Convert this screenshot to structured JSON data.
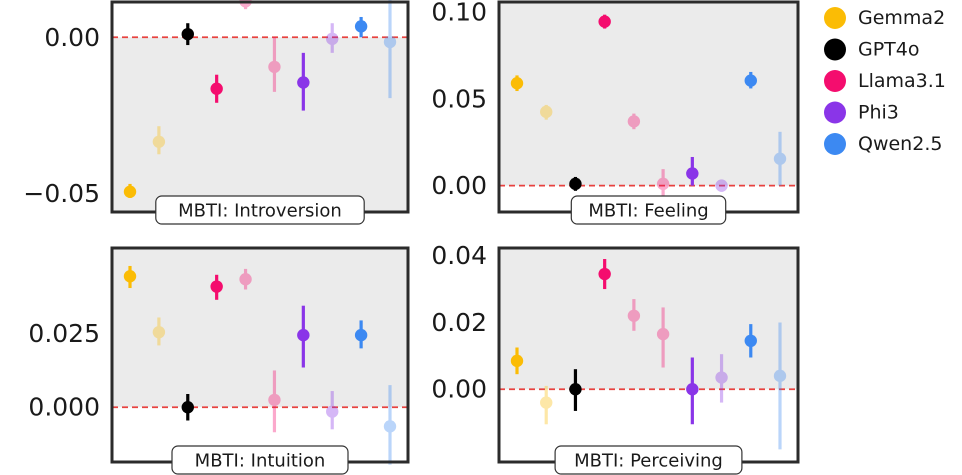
{
  "legend": {
    "placement": "right",
    "entries": [
      {
        "name": "Gemma2",
        "color": "#FBBC05"
      },
      {
        "name": "GPT4o",
        "color": "#000000"
      },
      {
        "name": "Llama3.1",
        "color": "#F40D6E"
      },
      {
        "name": "Phi3",
        "color": "#8A35E8"
      },
      {
        "name": "Qwen2.5",
        "color": "#3C89F2"
      }
    ]
  },
  "chart_data": [
    {
      "type": "scatter",
      "title": "MBTI: Introversion",
      "y_axis_side": "left",
      "ylim": [
        -0.056,
        0.0113
      ],
      "yticks": [
        {
          "v": 0.0,
          "label": "0.00"
        },
        {
          "v": -0.05,
          "label": "−0.05"
        }
      ],
      "xlim": [
        0,
        10
      ],
      "shade_above_zero": false,
      "points": [
        {
          "model": "Gemma2",
          "variant": "solid",
          "x": 1,
          "y": -0.0495,
          "lo": -0.0515,
          "hi": -0.047
        },
        {
          "model": "Gemma2",
          "variant": "faded",
          "x": 2,
          "y": -0.0335,
          "lo": -0.0375,
          "hi": -0.0285
        },
        {
          "model": "GPT4o",
          "variant": "solid",
          "x": 3,
          "y": 0.001,
          "lo": -0.0025,
          "hi": 0.0045
        },
        {
          "model": "Llama3.1",
          "variant": "solid",
          "x": 4,
          "y": -0.0165,
          "lo": -0.021,
          "hi": -0.012
        },
        {
          "model": "Llama3.1",
          "variant": "faded",
          "x": 5,
          "y": 0.0115,
          "lo": 0.009,
          "hi": 0.0135
        },
        {
          "model": "Llama3.1",
          "variant": "faded",
          "x": 6,
          "y": -0.0095,
          "lo": -0.0175,
          "hi": 0.0
        },
        {
          "model": "Phi3",
          "variant": "solid",
          "x": 7,
          "y": -0.0145,
          "lo": -0.0235,
          "hi": -0.005
        },
        {
          "model": "Phi3",
          "variant": "faded",
          "x": 8,
          "y": -0.0005,
          "lo": -0.005,
          "hi": 0.0045
        },
        {
          "model": "Qwen2.5",
          "variant": "solid",
          "x": 9,
          "y": 0.0035,
          "lo": 0.0,
          "hi": 0.0065
        },
        {
          "model": "Qwen2.5",
          "variant": "faded",
          "x": 10,
          "y": -0.0015,
          "lo": -0.0195,
          "hi": 0.0155
        }
      ]
    },
    {
      "type": "scatter",
      "title": "MBTI: Feeling",
      "y_axis_side": "left",
      "ylim": [
        -0.0152,
        0.1058
      ],
      "yticks": [
        {
          "v": 0.1,
          "label": "0.10"
        },
        {
          "v": 0.05,
          "label": "0.05"
        },
        {
          "v": 0.0,
          "label": "0.00"
        }
      ],
      "xlim": [
        0,
        10
      ],
      "shade_above_zero": true,
      "points": [
        {
          "model": "Gemma2",
          "variant": "solid",
          "x": 1,
          "y": 0.059,
          "lo": 0.0545,
          "hi": 0.0635
        },
        {
          "model": "Gemma2",
          "variant": "faded",
          "x": 2,
          "y": 0.0425,
          "lo": 0.038,
          "hi": 0.0465
        },
        {
          "model": "GPT4o",
          "variant": "solid",
          "x": 3,
          "y": 0.001,
          "lo": -0.003,
          "hi": 0.005
        },
        {
          "model": "Llama3.1",
          "variant": "solid",
          "x": 4,
          "y": 0.0945,
          "lo": 0.0905,
          "hi": 0.0985
        },
        {
          "model": "Llama3.1",
          "variant": "faded",
          "x": 5,
          "y": 0.037,
          "lo": 0.0325,
          "hi": 0.0415
        },
        {
          "model": "Llama3.1",
          "variant": "faded",
          "x": 6,
          "y": 0.001,
          "lo": -0.0065,
          "hi": 0.0095
        },
        {
          "model": "Phi3",
          "variant": "solid",
          "x": 7,
          "y": 0.007,
          "lo": 0.0,
          "hi": 0.0165
        },
        {
          "model": "Phi3",
          "variant": "faded",
          "x": 8,
          "y": 0.0,
          "lo": -0.0035,
          "hi": 0.0035
        },
        {
          "model": "Qwen2.5",
          "variant": "solid",
          "x": 9,
          "y": 0.0605,
          "lo": 0.056,
          "hi": 0.0655
        },
        {
          "model": "Qwen2.5",
          "variant": "faded",
          "x": 10,
          "y": 0.0155,
          "lo": 0.0,
          "hi": 0.031
        }
      ]
    },
    {
      "type": "scatter",
      "title": "MBTI: Intuition",
      "y_axis_side": "left",
      "ylim": [
        -0.0186,
        0.0541
      ],
      "yticks": [
        {
          "v": 0.025,
          "label": "0.025"
        },
        {
          "v": 0.0,
          "label": "0.000"
        }
      ],
      "xlim": [
        0,
        10
      ],
      "shade_above_zero": true,
      "points": [
        {
          "model": "Gemma2",
          "variant": "solid",
          "x": 1,
          "y": 0.0445,
          "lo": 0.0405,
          "hi": 0.048
        },
        {
          "model": "Gemma2",
          "variant": "faded",
          "x": 2,
          "y": 0.0255,
          "lo": 0.021,
          "hi": 0.0305
        },
        {
          "model": "GPT4o",
          "variant": "solid",
          "x": 3,
          "y": 0.0,
          "lo": -0.0045,
          "hi": 0.0045
        },
        {
          "model": "Llama3.1",
          "variant": "solid",
          "x": 4,
          "y": 0.041,
          "lo": 0.0365,
          "hi": 0.045
        },
        {
          "model": "Llama3.1",
          "variant": "faded",
          "x": 5,
          "y": 0.0435,
          "lo": 0.04,
          "hi": 0.047
        },
        {
          "model": "Llama3.1",
          "variant": "faded",
          "x": 6,
          "y": 0.0025,
          "lo": -0.0085,
          "hi": 0.0125
        },
        {
          "model": "Phi3",
          "variant": "solid",
          "x": 7,
          "y": 0.0245,
          "lo": 0.0135,
          "hi": 0.0345
        },
        {
          "model": "Phi3",
          "variant": "faded",
          "x": 8,
          "y": -0.0015,
          "lo": -0.0075,
          "hi": 0.0055
        },
        {
          "model": "Qwen2.5",
          "variant": "solid",
          "x": 9,
          "y": 0.0245,
          "lo": 0.02,
          "hi": 0.0295
        },
        {
          "model": "Qwen2.5",
          "variant": "faded",
          "x": 10,
          "y": -0.0065,
          "lo": -0.0195,
          "hi": 0.0075
        }
      ]
    },
    {
      "type": "scatter",
      "title": "MBTI: Perceiving",
      "y_axis_side": "left",
      "ylim": [
        -0.0218,
        0.0423
      ],
      "yticks": [
        {
          "v": 0.04,
          "label": "0.04"
        },
        {
          "v": 0.02,
          "label": "0.02"
        },
        {
          "v": 0.0,
          "label": "0.00"
        }
      ],
      "xlim": [
        0,
        10
      ],
      "shade_above_zero": true,
      "points": [
        {
          "model": "Gemma2",
          "variant": "solid",
          "x": 1,
          "y": 0.0085,
          "lo": 0.0045,
          "hi": 0.0125
        },
        {
          "model": "Gemma2",
          "variant": "faded",
          "x": 2,
          "y": -0.004,
          "lo": -0.0105,
          "hi": 0.001
        },
        {
          "model": "GPT4o",
          "variant": "solid",
          "x": 3,
          "y": 0.0,
          "lo": -0.0065,
          "hi": 0.006
        },
        {
          "model": "Llama3.1",
          "variant": "solid",
          "x": 4,
          "y": 0.0345,
          "lo": 0.03,
          "hi": 0.039
        },
        {
          "model": "Llama3.1",
          "variant": "faded",
          "x": 5,
          "y": 0.022,
          "lo": 0.0175,
          "hi": 0.027
        },
        {
          "model": "Llama3.1",
          "variant": "faded",
          "x": 6,
          "y": 0.0165,
          "lo": 0.0065,
          "hi": 0.0245
        },
        {
          "model": "Phi3",
          "variant": "solid",
          "x": 7,
          "y": 0.0,
          "lo": -0.0105,
          "hi": 0.0095
        },
        {
          "model": "Phi3",
          "variant": "faded",
          "x": 8,
          "y": 0.0035,
          "lo": -0.004,
          "hi": 0.0105
        },
        {
          "model": "Qwen2.5",
          "variant": "solid",
          "x": 9,
          "y": 0.0145,
          "lo": 0.0095,
          "hi": 0.0195
        },
        {
          "model": "Qwen2.5",
          "variant": "faded",
          "x": 10,
          "y": 0.004,
          "lo": -0.018,
          "hi": 0.02
        }
      ]
    }
  ]
}
